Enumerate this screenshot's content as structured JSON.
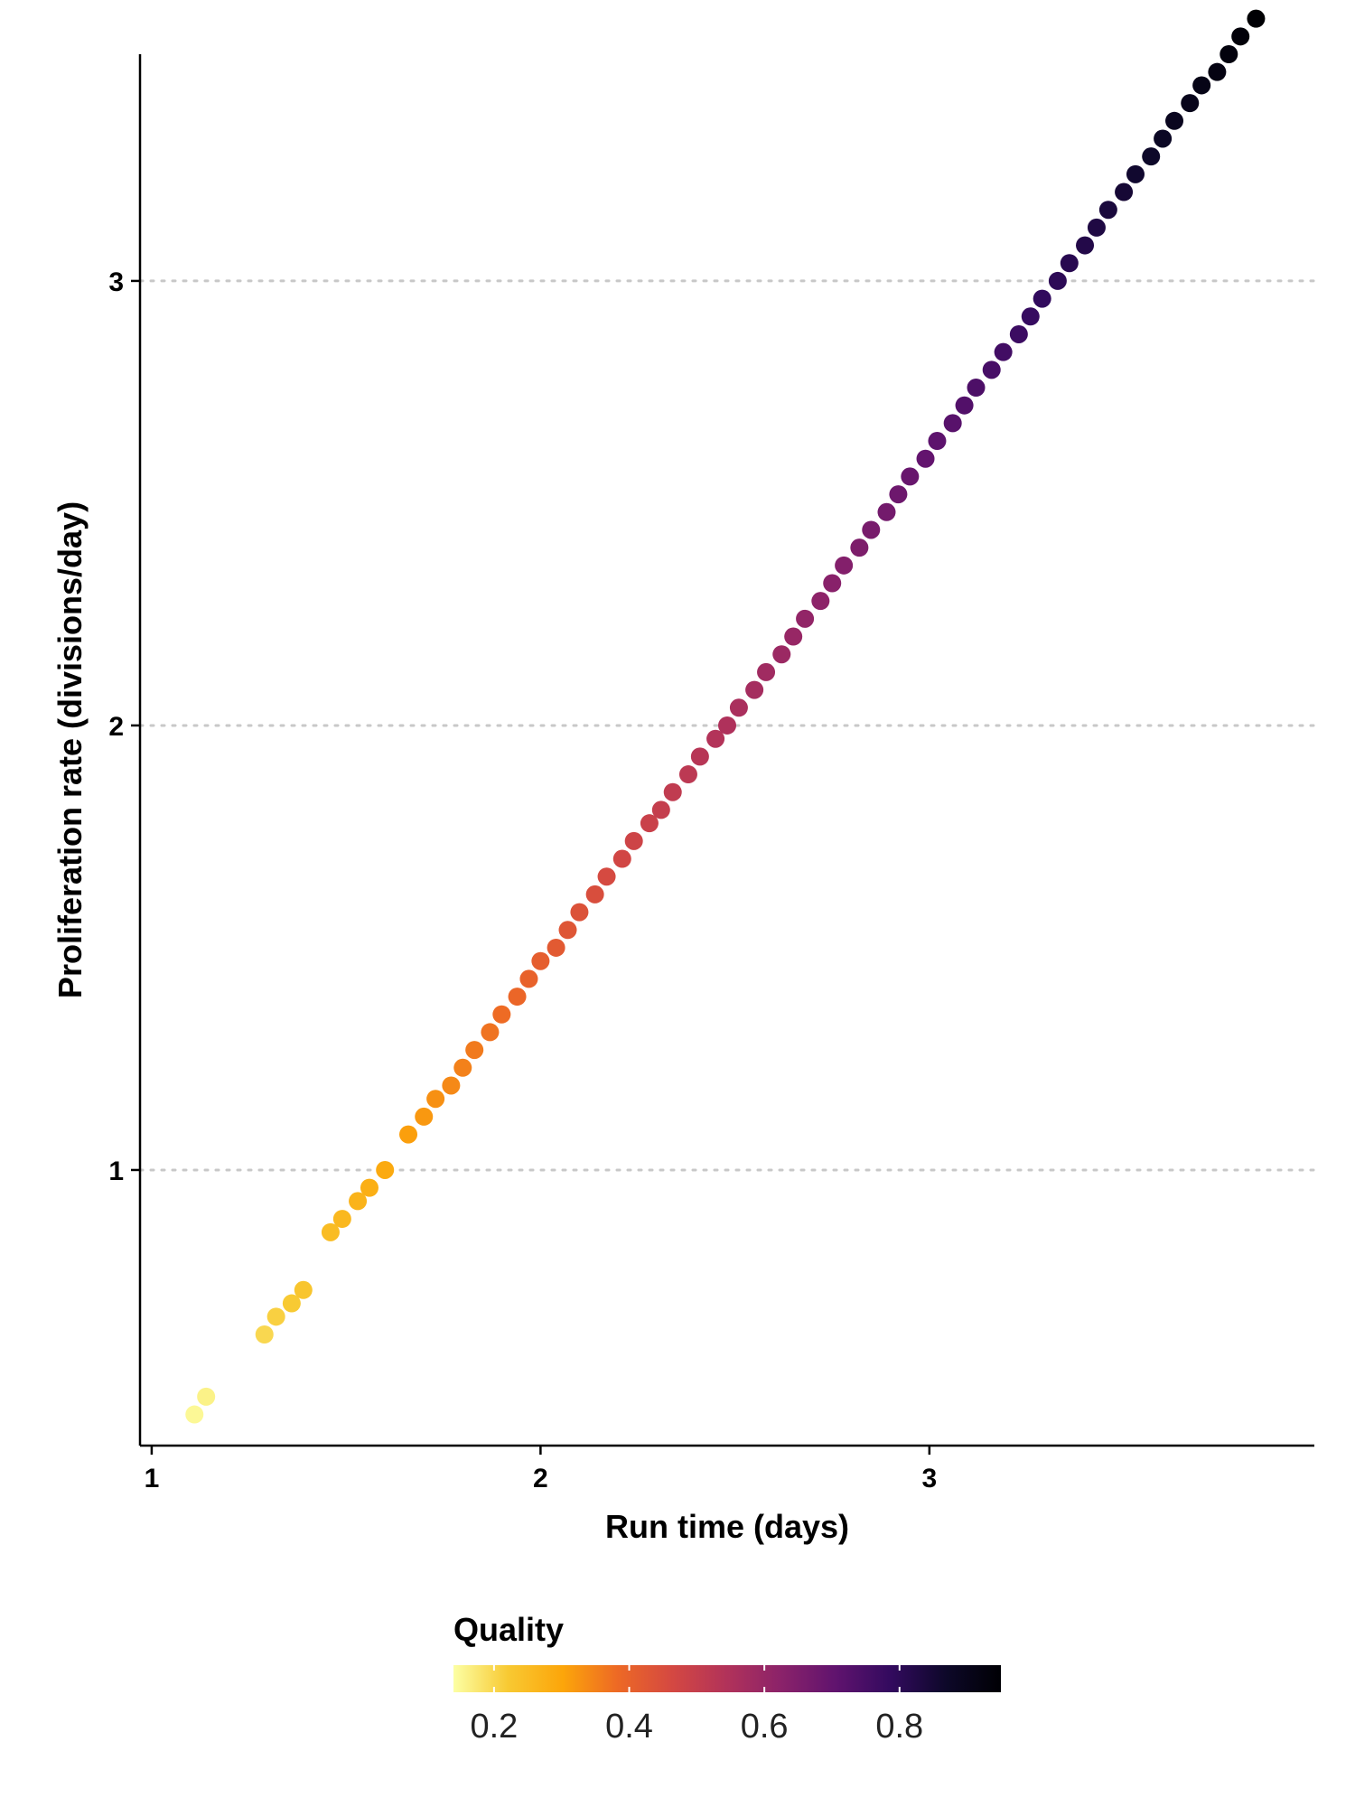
{
  "chart_data": {
    "type": "scatter",
    "xlabel": "Run time (days)",
    "ylabel": "Proliferation rate (divisions/day)",
    "xlim": [
      0.97,
      3.99
    ],
    "ylim": [
      0.38,
      3.51
    ],
    "x_ticks": [
      "1",
      "2",
      "3"
    ],
    "y_ticks": [
      "1",
      "2",
      "3"
    ],
    "grid": "horizontal dotted at y ticks",
    "color_scale": {
      "title": "Quality",
      "palette": "inferno (reversed)",
      "range": [
        0.14,
        0.95
      ],
      "ticks": [
        "0.2",
        "0.4",
        "0.6",
        "0.8"
      ],
      "colors": [
        "#fcffa4",
        "#f8c932",
        "#fca50a",
        "#ed6925",
        "#d44842",
        "#b1325a",
        "#8a226a",
        "#5f136e",
        "#320a5e",
        "#0d0829",
        "#000004"
      ]
    },
    "points": [
      {
        "x": 1.11,
        "y": 0.45,
        "q": 0.15
      },
      {
        "x": 1.14,
        "y": 0.49,
        "q": 0.16
      },
      {
        "x": 1.29,
        "y": 0.63,
        "q": 0.2
      },
      {
        "x": 1.32,
        "y": 0.67,
        "q": 0.21
      },
      {
        "x": 1.36,
        "y": 0.7,
        "q": 0.22
      },
      {
        "x": 1.39,
        "y": 0.73,
        "q": 0.23
      },
      {
        "x": 1.46,
        "y": 0.86,
        "q": 0.25
      },
      {
        "x": 1.49,
        "y": 0.89,
        "q": 0.26
      },
      {
        "x": 1.53,
        "y": 0.93,
        "q": 0.27
      },
      {
        "x": 1.56,
        "y": 0.96,
        "q": 0.28
      },
      {
        "x": 1.6,
        "y": 1.0,
        "q": 0.29
      },
      {
        "x": 1.66,
        "y": 1.08,
        "q": 0.31
      },
      {
        "x": 1.7,
        "y": 1.12,
        "q": 0.32
      },
      {
        "x": 1.73,
        "y": 1.16,
        "q": 0.33
      },
      {
        "x": 1.77,
        "y": 1.19,
        "q": 0.34
      },
      {
        "x": 1.8,
        "y": 1.23,
        "q": 0.35
      },
      {
        "x": 1.83,
        "y": 1.27,
        "q": 0.36
      },
      {
        "x": 1.87,
        "y": 1.31,
        "q": 0.37
      },
      {
        "x": 1.9,
        "y": 1.35,
        "q": 0.38
      },
      {
        "x": 1.94,
        "y": 1.39,
        "q": 0.39
      },
      {
        "x": 1.97,
        "y": 1.43,
        "q": 0.4
      },
      {
        "x": 2.0,
        "y": 1.47,
        "q": 0.41
      },
      {
        "x": 2.04,
        "y": 1.5,
        "q": 0.42
      },
      {
        "x": 2.07,
        "y": 1.54,
        "q": 0.43
      },
      {
        "x": 2.1,
        "y": 1.58,
        "q": 0.44
      },
      {
        "x": 2.14,
        "y": 1.62,
        "q": 0.45
      },
      {
        "x": 2.17,
        "y": 1.66,
        "q": 0.46
      },
      {
        "x": 2.21,
        "y": 1.7,
        "q": 0.47
      },
      {
        "x": 2.24,
        "y": 1.74,
        "q": 0.48
      },
      {
        "x": 2.28,
        "y": 1.78,
        "q": 0.49
      },
      {
        "x": 2.31,
        "y": 1.81,
        "q": 0.5
      },
      {
        "x": 2.34,
        "y": 1.85,
        "q": 0.51
      },
      {
        "x": 2.38,
        "y": 1.89,
        "q": 0.52
      },
      {
        "x": 2.41,
        "y": 1.93,
        "q": 0.53
      },
      {
        "x": 2.45,
        "y": 1.97,
        "q": 0.54
      },
      {
        "x": 2.48,
        "y": 2.0,
        "q": 0.55
      },
      {
        "x": 2.51,
        "y": 2.04,
        "q": 0.56
      },
      {
        "x": 2.55,
        "y": 2.08,
        "q": 0.57
      },
      {
        "x": 2.58,
        "y": 2.12,
        "q": 0.58
      },
      {
        "x": 2.62,
        "y": 2.16,
        "q": 0.59
      },
      {
        "x": 2.65,
        "y": 2.2,
        "q": 0.6
      },
      {
        "x": 2.68,
        "y": 2.24,
        "q": 0.61
      },
      {
        "x": 2.72,
        "y": 2.28,
        "q": 0.62
      },
      {
        "x": 2.75,
        "y": 2.32,
        "q": 0.63
      },
      {
        "x": 2.78,
        "y": 2.36,
        "q": 0.64
      },
      {
        "x": 2.82,
        "y": 2.4,
        "q": 0.65
      },
      {
        "x": 2.85,
        "y": 2.44,
        "q": 0.66
      },
      {
        "x": 2.89,
        "y": 2.48,
        "q": 0.67
      },
      {
        "x": 2.92,
        "y": 2.52,
        "q": 0.68
      },
      {
        "x": 2.95,
        "y": 2.56,
        "q": 0.69
      },
      {
        "x": 2.99,
        "y": 2.6,
        "q": 0.7
      },
      {
        "x": 3.02,
        "y": 2.64,
        "q": 0.71
      },
      {
        "x": 3.06,
        "y": 2.68,
        "q": 0.72
      },
      {
        "x": 3.09,
        "y": 2.72,
        "q": 0.73
      },
      {
        "x": 3.12,
        "y": 2.76,
        "q": 0.74
      },
      {
        "x": 3.16,
        "y": 2.8,
        "q": 0.75
      },
      {
        "x": 3.19,
        "y": 2.84,
        "q": 0.76
      },
      {
        "x": 3.23,
        "y": 2.88,
        "q": 0.77
      },
      {
        "x": 3.26,
        "y": 2.92,
        "q": 0.78
      },
      {
        "x": 3.29,
        "y": 2.96,
        "q": 0.79
      },
      {
        "x": 3.33,
        "y": 3.0,
        "q": 0.8
      },
      {
        "x": 3.36,
        "y": 3.04,
        "q": 0.81
      },
      {
        "x": 3.4,
        "y": 3.08,
        "q": 0.82
      },
      {
        "x": 3.43,
        "y": 3.12,
        "q": 0.83
      },
      {
        "x": 3.46,
        "y": 3.16,
        "q": 0.84
      },
      {
        "x": 3.5,
        "y": 3.2,
        "q": 0.85
      },
      {
        "x": 3.53,
        "y": 3.24,
        "q": 0.86
      },
      {
        "x": 3.57,
        "y": 3.28,
        "q": 0.87
      },
      {
        "x": 3.6,
        "y": 3.32,
        "q": 0.88
      },
      {
        "x": 3.63,
        "y": 3.36,
        "q": 0.89
      },
      {
        "x": 3.67,
        "y": 3.4,
        "q": 0.9
      },
      {
        "x": 3.7,
        "y": 3.44,
        "q": 0.91
      },
      {
        "x": 3.74,
        "y": 3.47,
        "q": 0.92
      },
      {
        "x": 3.77,
        "y": 3.51,
        "q": 0.93
      },
      {
        "x": 3.8,
        "y": 3.55,
        "q": 0.94
      },
      {
        "x": 3.84,
        "y": 3.59,
        "q": 0.95
      }
    ]
  }
}
